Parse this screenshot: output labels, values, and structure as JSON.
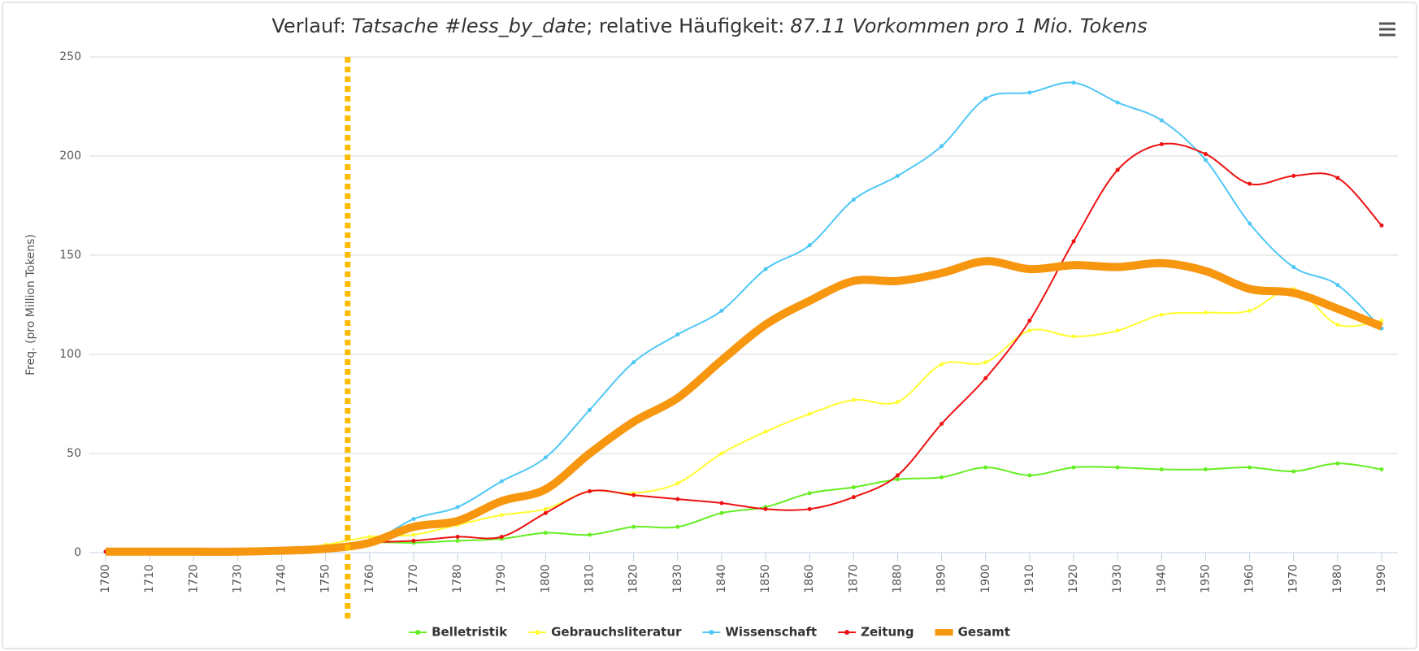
{
  "chart_data": {
    "type": "line",
    "title_parts": [
      "Verlauf:",
      "Tatsache #less_by_date",
      "; relative Häufigkeit:",
      "87.11 Vorkommen pro 1 Mio. Tokens"
    ],
    "title_italic": [
      false,
      true,
      false,
      true
    ],
    "y_label": "Freq. (pro Million Tokens)",
    "x": [
      1700,
      1710,
      1720,
      1730,
      1740,
      1750,
      1760,
      1770,
      1780,
      1790,
      1800,
      1810,
      1820,
      1830,
      1840,
      1850,
      1860,
      1870,
      1880,
      1890,
      1900,
      1910,
      1920,
      1930,
      1940,
      1950,
      1960,
      1970,
      1980,
      1990
    ],
    "xlim": [
      1700,
      1990
    ],
    "xticks": [
      1700,
      1710,
      1720,
      1730,
      1740,
      1750,
      1760,
      1770,
      1780,
      1790,
      1800,
      1810,
      1820,
      1830,
      1840,
      1850,
      1860,
      1870,
      1880,
      1890,
      1900,
      1910,
      1920,
      1930,
      1940,
      1950,
      1960,
      1970,
      1980,
      1990
    ],
    "ylim": [
      0,
      250
    ],
    "yticks": [
      0,
      50,
      100,
      150,
      200,
      250
    ],
    "grid": true,
    "legend": "bottom",
    "marker_line": {
      "x": 1755,
      "color": "#ffbb00"
    },
    "series": [
      {
        "name": "Belletristik",
        "color": "#66ee22",
        "line_width": 2,
        "markers": true,
        "values": [
          0.5,
          0.5,
          0.5,
          0.5,
          1,
          1.5,
          5,
          5,
          6,
          7,
          10,
          9,
          13,
          13,
          20,
          23,
          30,
          33,
          37,
          38,
          43,
          39,
          43,
          43,
          42,
          42,
          43,
          41,
          45,
          42
        ]
      },
      {
        "name": "Gebrauchsliteratur",
        "color": "#ffff33",
        "line_width": 2,
        "markers": true,
        "values": [
          0.5,
          0.5,
          0.5,
          0.5,
          1,
          4,
          8,
          9,
          14,
          19,
          22,
          31,
          30,
          35,
          50,
          61,
          70,
          77,
          76,
          95,
          96,
          112,
          109,
          112,
          120,
          121,
          122,
          133,
          115,
          117
        ]
      },
      {
        "name": "Wissenschaft",
        "color": "#4fc8f5",
        "line_width": 2,
        "markers": true,
        "values": [
          0.5,
          0.5,
          0.5,
          0.5,
          1,
          2,
          5,
          17,
          23,
          36,
          48,
          72,
          96,
          110,
          122,
          143,
          155,
          178,
          190,
          205,
          229,
          232,
          237,
          227,
          218,
          198,
          166,
          144,
          135,
          113
        ]
      },
      {
        "name": "Zeitung",
        "color": "#ee1111",
        "line_width": 2,
        "markers": true,
        "values": [
          0.5,
          0.5,
          0.5,
          0.5,
          1,
          2,
          5,
          6,
          8,
          8,
          20,
          31,
          29,
          27,
          25,
          22,
          22,
          28,
          39,
          65,
          88,
          117,
          157,
          193,
          206,
          201,
          186,
          190,
          189,
          165
        ]
      },
      {
        "name": "Gesamt",
        "color": "#f7960f",
        "line_width": 10,
        "markers": false,
        "values": [
          0.5,
          0.5,
          0.5,
          0.5,
          1,
          2,
          5,
          13,
          16,
          26,
          32,
          50,
          66,
          78,
          97,
          115,
          127,
          137,
          137,
          141,
          147,
          143,
          145,
          144,
          146,
          142,
          133,
          131,
          123,
          114
        ]
      }
    ]
  }
}
